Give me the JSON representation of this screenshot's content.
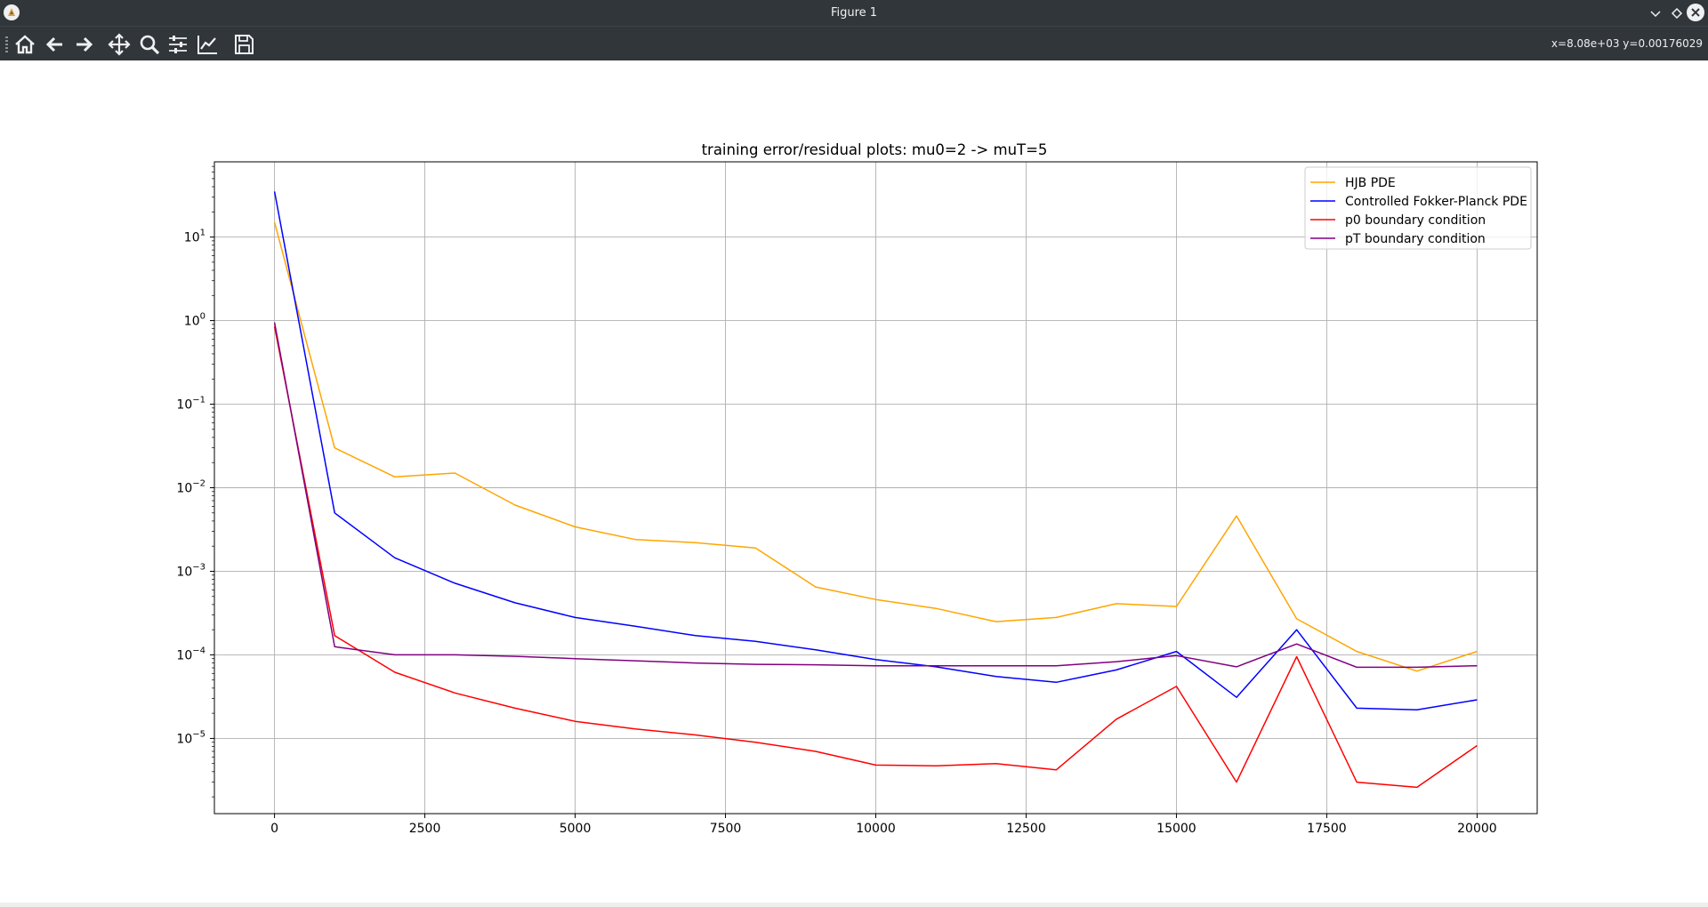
{
  "window": {
    "title": "Figure 1"
  },
  "toolbar": {
    "buttons": [
      {
        "name": "home-icon",
        "label": "Home"
      },
      {
        "name": "back-icon",
        "label": "Back"
      },
      {
        "name": "forward-icon",
        "label": "Forward"
      },
      {
        "name": "pan-icon",
        "label": "Pan"
      },
      {
        "name": "zoom-icon",
        "label": "Zoom"
      },
      {
        "name": "configure-subplots-icon",
        "label": "Subplots"
      },
      {
        "name": "edit-axis-icon",
        "label": "Customize"
      },
      {
        "name": "save-icon",
        "label": "Save"
      }
    ],
    "coords": "x=8.08e+03 y=0.00176029"
  },
  "chart_data": {
    "type": "line",
    "title": "training error/residual plots: mu0=2 -> muT=5",
    "xlabel": "",
    "ylabel": "",
    "yscale": "log",
    "xlim": [
      -1000,
      21000
    ],
    "ylim_log10": [
      -5.9,
      1.9
    ],
    "xticks": [
      0,
      2500,
      5000,
      7500,
      10000,
      12500,
      15000,
      17500,
      20000
    ],
    "xtick_labels": [
      "0",
      "2500",
      "5000",
      "7500",
      "10000",
      "12500",
      "15000",
      "17500",
      "20000"
    ],
    "yticks_log10": [
      -5,
      -4,
      -3,
      -2,
      -1,
      0,
      1
    ],
    "ytick_labels": [
      {
        "base": "10",
        "exp": "−5"
      },
      {
        "base": "10",
        "exp": "−4"
      },
      {
        "base": "10",
        "exp": "−3"
      },
      {
        "base": "10",
        "exp": "−2"
      },
      {
        "base": "10",
        "exp": "−1"
      },
      {
        "base": "10",
        "exp": "0"
      },
      {
        "base": "10",
        "exp": "1"
      }
    ],
    "grid": true,
    "legend_position": "upper right",
    "x": [
      0,
      1000,
      2000,
      3000,
      4000,
      5000,
      6000,
      7000,
      8000,
      9000,
      10000,
      11000,
      12000,
      13000,
      14000,
      15000,
      16000,
      17000,
      18000,
      19000,
      20000
    ],
    "series": [
      {
        "name": "HJB PDE",
        "color": "#ffa500",
        "values": [
          15,
          0.03,
          0.0135,
          0.015,
          0.0062,
          0.0034,
          0.0024,
          0.0022,
          0.0019,
          0.00065,
          0.00046,
          0.00036,
          0.00025,
          0.00028,
          0.00041,
          0.00038,
          0.0046,
          0.00027,
          0.00011,
          6.4e-05,
          0.00011
        ]
      },
      {
        "name": "Controlled Fokker-Planck PDE",
        "color": "#0000ff",
        "values": [
          35,
          0.005,
          0.00145,
          0.00072,
          0.00042,
          0.00028,
          0.00022,
          0.00017,
          0.000145,
          0.000115,
          8.8e-05,
          7.2e-05,
          5.5e-05,
          4.7e-05,
          6.6e-05,
          0.00011,
          3.1e-05,
          0.0002,
          2.3e-05,
          2.2e-05,
          2.9e-05
        ]
      },
      {
        "name": "p0 boundary condition",
        "color": "#ff0000",
        "values": [
          0.85,
          0.00017,
          6.2e-05,
          3.5e-05,
          2.3e-05,
          1.6e-05,
          1.3e-05,
          1.1e-05,
          9e-06,
          7e-06,
          4.8e-06,
          4.7e-06,
          5e-06,
          4.2e-06,
          1.7e-05,
          4.2e-05,
          3e-06,
          9.5e-05,
          3e-06,
          2.6e-06,
          8.2e-06
        ]
      },
      {
        "name": "pT boundary condition",
        "color": "#800080",
        "values": [
          0.95,
          0.000125,
          0.0001,
          0.0001,
          9.6e-05,
          9e-05,
          8.5e-05,
          8e-05,
          7.7e-05,
          7.6e-05,
          7.4e-05,
          7.4e-05,
          7.4e-05,
          7.4e-05,
          8.3e-05,
          9.8e-05,
          7.2e-05,
          0.000135,
          7.1e-05,
          7.1e-05,
          7.4e-05
        ]
      }
    ]
  }
}
